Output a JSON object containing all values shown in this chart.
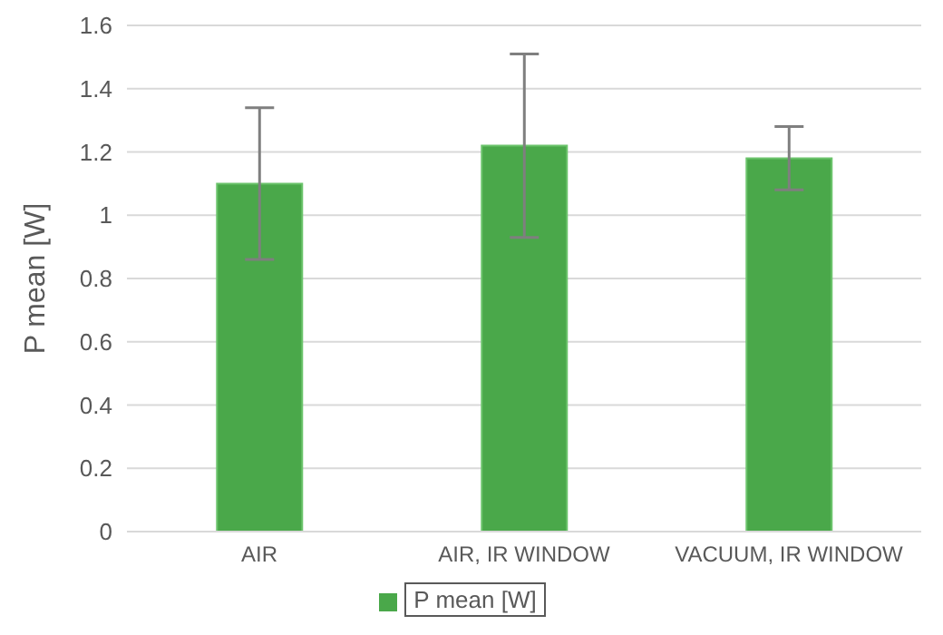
{
  "chart_data": {
    "type": "bar",
    "ylabel": "P mean [W]",
    "categories": [
      "AIR",
      "AIR, IR WINDOW",
      "VACUUM, IR WINDOW"
    ],
    "series": [
      {
        "name": "P mean [W]",
        "color": "#4aa84a",
        "values": [
          1.1,
          1.22,
          1.18
        ],
        "errors": [
          [
            0.86,
            1.34
          ],
          [
            0.93,
            1.51
          ],
          [
            1.08,
            1.28
          ]
        ]
      }
    ],
    "ylim": [
      0,
      1.6
    ],
    "yticks": [
      0,
      0.2,
      0.4,
      0.6,
      0.8,
      1,
      1.2,
      1.4,
      1.6
    ],
    "grid": "y",
    "legend": "bottom"
  }
}
